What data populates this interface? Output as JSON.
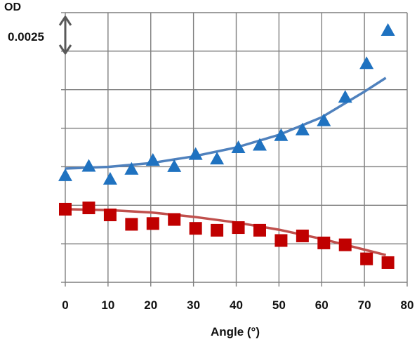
{
  "chart_data": {
    "type": "scatter",
    "title": "",
    "ylabel": "OD",
    "xlabel": "Angle (°)",
    "scale_bar_label": "0.0025",
    "scale_bar_od": 0.0025,
    "xlim": [
      0,
      80
    ],
    "ylim": [
      0,
      1
    ],
    "y_grid_step": 0.142857,
    "x_ticks": [
      0,
      10,
      20,
      30,
      40,
      50,
      60,
      70,
      80
    ],
    "grid": true,
    "series": [
      {
        "color": "#1f72c0",
        "marker": "triangle",
        "x": [
          0,
          5.5,
          10.5,
          15.5,
          20.5,
          25.5,
          30.5,
          35.5,
          40.5,
          45.5,
          50.5,
          55.5,
          60.5,
          65.5,
          70.5,
          75.5
        ],
        "y": [
          0.396,
          0.431,
          0.383,
          0.42,
          0.453,
          0.43,
          0.475,
          0.458,
          0.5,
          0.509,
          0.545,
          0.566,
          0.6,
          0.687,
          0.812,
          0.935
        ]
      },
      {
        "color": "#c00000",
        "marker": "square",
        "x": [
          0,
          5.5,
          10.5,
          15.5,
          20.5,
          25.5,
          30.5,
          35.5,
          40.5,
          45.5,
          50.5,
          55.5,
          60.5,
          65.5,
          70.5,
          75.5
        ],
        "y": [
          0.271,
          0.276,
          0.25,
          0.215,
          0.218,
          0.233,
          0.2,
          0.193,
          0.203,
          0.193,
          0.155,
          0.172,
          0.146,
          0.139,
          0.087,
          0.073
        ]
      }
    ],
    "fit_lines": [
      {
        "color": "#4f81bd",
        "x": [
          0,
          10,
          20,
          30,
          40,
          50,
          60,
          70,
          75
        ],
        "y": [
          0.422,
          0.428,
          0.442,
          0.467,
          0.5,
          0.547,
          0.612,
          0.707,
          0.758
        ]
      },
      {
        "color": "#c0504d",
        "x": [
          0,
          10,
          20,
          30,
          40,
          50,
          60,
          70,
          75
        ],
        "y": [
          0.271,
          0.268,
          0.259,
          0.243,
          0.222,
          0.195,
          0.161,
          0.121,
          0.101
        ]
      }
    ]
  }
}
